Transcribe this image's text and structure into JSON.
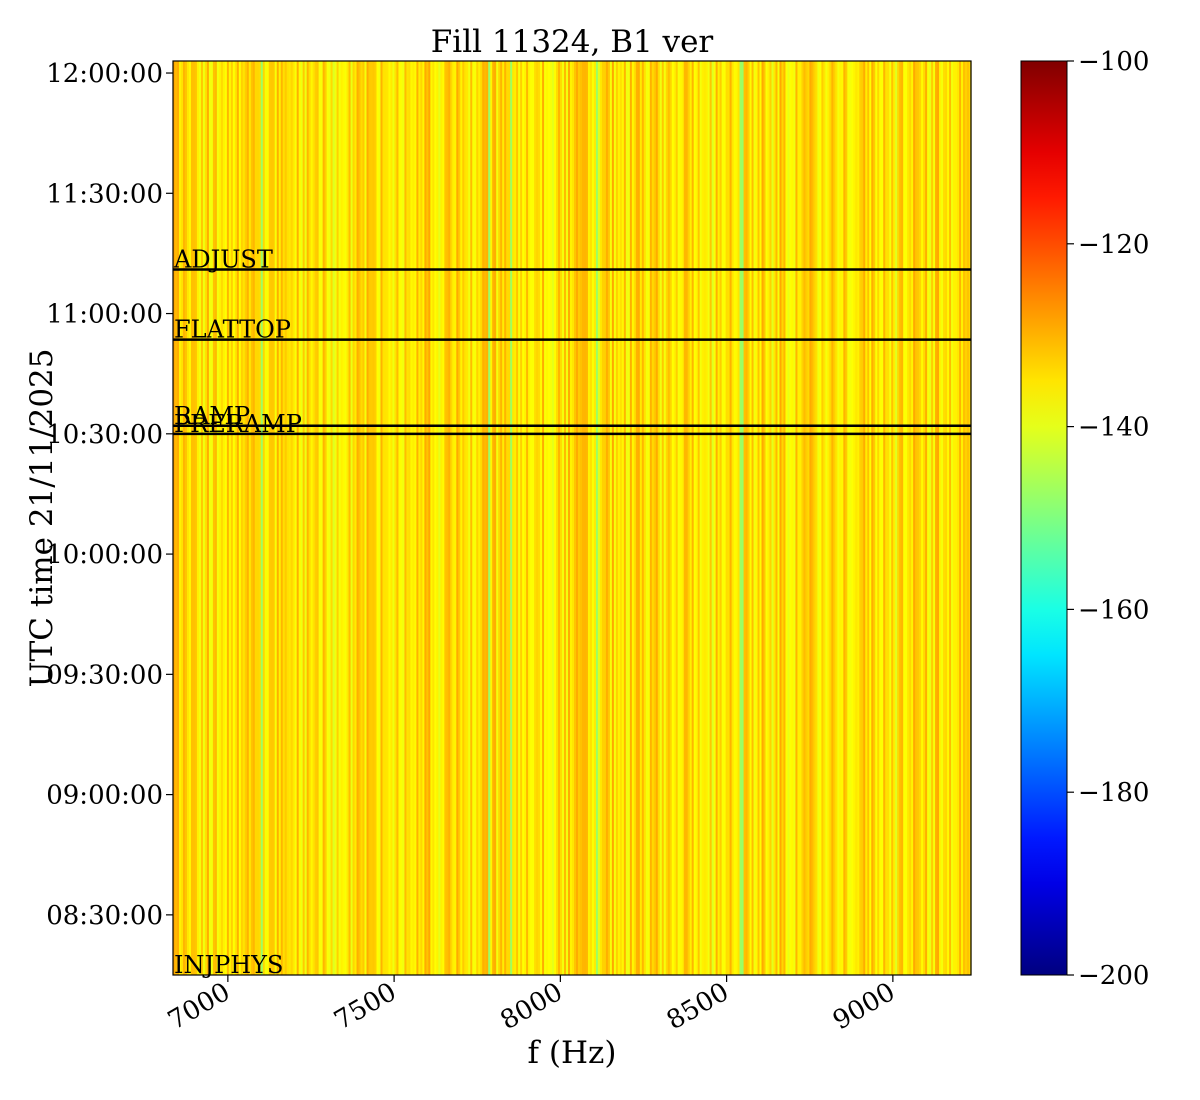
{
  "chart_data": {
    "type": "heatmap",
    "title": "Fill 11324, B1 ver",
    "xlabel": "f (Hz)",
    "ylabel": "UTC time 21/11/2025",
    "x_range": [
      6835,
      9235
    ],
    "y_range": [
      "08:15:00",
      "12:03:00"
    ],
    "x_ticks": [
      {
        "value": 7000,
        "label": "7000"
      },
      {
        "value": 7500,
        "label": "7500"
      },
      {
        "value": 8000,
        "label": "8000"
      },
      {
        "value": 8500,
        "label": "8500"
      },
      {
        "value": 9000,
        "label": "9000"
      }
    ],
    "y_ticks": [
      {
        "value": "08:30:00",
        "label": "08:30:00"
      },
      {
        "value": "09:00:00",
        "label": "09:00:00"
      },
      {
        "value": "09:30:00",
        "label": "09:30:00"
      },
      {
        "value": "10:00:00",
        "label": "10:00:00"
      },
      {
        "value": "10:30:00",
        "label": "10:30:00"
      },
      {
        "value": "11:00:00",
        "label": "11:00:00"
      },
      {
        "value": "11:30:00",
        "label": "11:30:00"
      },
      {
        "value": "12:00:00",
        "label": "12:00:00"
      }
    ],
    "colorbar": {
      "colormap": "jet",
      "range": [
        -200,
        -100
      ],
      "ticks": [
        {
          "value": -200,
          "label": "−200"
        },
        {
          "value": -180,
          "label": "−180"
        },
        {
          "value": -160,
          "label": "−160"
        },
        {
          "value": -140,
          "label": "−140"
        },
        {
          "value": -120,
          "label": "−120"
        },
        {
          "value": -100,
          "label": "−100"
        }
      ]
    },
    "typical_value_range": [
      -150,
      -127
    ],
    "notable_lower_columns_hz": [
      7100,
      7785,
      7850,
      8110,
      8545
    ],
    "events": [
      {
        "label": "INJPHYS",
        "time": "08:15:00"
      },
      {
        "label": "PRERAMP",
        "time": "10:30:00"
      },
      {
        "label": "RAMP",
        "time": "10:32:00"
      },
      {
        "label": "FLATTOP",
        "time": "10:53:30"
      },
      {
        "label": "ADJUST",
        "time": "11:11:00"
      }
    ]
  }
}
